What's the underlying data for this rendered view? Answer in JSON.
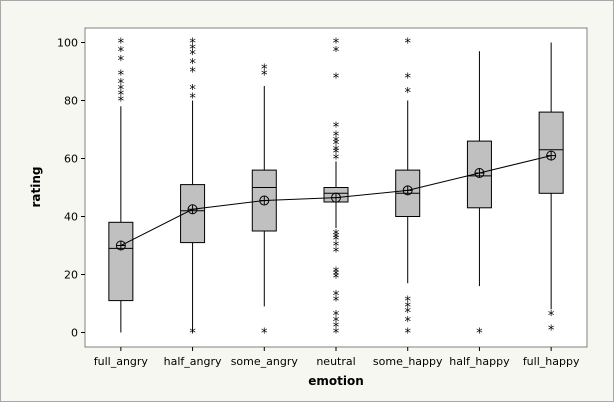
{
  "chart_data": {
    "type": "box",
    "title": "",
    "xlabel": "emotion",
    "ylabel": "rating",
    "ylim": [
      -5,
      105
    ],
    "yticks": [
      0,
      20,
      40,
      60,
      80,
      100
    ],
    "grid": false,
    "legend": "none",
    "colors": {
      "plot_bg": "#ffffff",
      "outer_bg": "#f7f7f1",
      "box_fill": "#c0c0c0",
      "line": "#000000"
    },
    "categories": [
      "full_angry",
      "half_angry",
      "some_angry",
      "neutral",
      "some_happy",
      "half_happy",
      "full_happy"
    ],
    "boxes": [
      {
        "category": "full_angry",
        "whisker_low": 0,
        "q1": 11,
        "median": 29,
        "q3": 38,
        "whisker_high": 78,
        "mean": 30,
        "outliers": [
          80,
          82,
          84,
          86,
          89,
          94,
          97,
          100
        ]
      },
      {
        "category": "half_angry",
        "whisker_low": 0,
        "q1": 31,
        "median": 42,
        "q3": 51,
        "whisker_high": 80,
        "mean": 42.5,
        "outliers": [
          0,
          81,
          84,
          90,
          93,
          96,
          98,
          100
        ]
      },
      {
        "category": "some_angry",
        "whisker_low": 9,
        "q1": 35,
        "median": 50,
        "q3": 56,
        "whisker_high": 85,
        "mean": 45.5,
        "outliers": [
          0,
          89,
          91
        ]
      },
      {
        "category": "neutral",
        "whisker_low": 36,
        "q1": 45,
        "median": 48,
        "q3": 50,
        "whisker_high": 59,
        "mean": 46.5,
        "outliers": [
          0,
          2,
          4,
          6,
          11,
          13,
          19,
          20,
          21,
          28,
          30,
          32,
          33,
          34,
          60,
          62,
          63,
          65,
          66,
          68,
          71,
          88,
          97,
          100
        ]
      },
      {
        "category": "some_happy",
        "whisker_low": 17,
        "q1": 40,
        "median": 48,
        "q3": 56,
        "whisker_high": 80,
        "mean": 49,
        "outliers": [
          0,
          4,
          7,
          9,
          11,
          83,
          88,
          100
        ]
      },
      {
        "category": "half_happy",
        "whisker_low": 16,
        "q1": 43,
        "median": 54,
        "q3": 66,
        "whisker_high": 97,
        "mean": 55,
        "outliers": [
          0
        ]
      },
      {
        "category": "full_happy",
        "whisker_low": 8,
        "q1": 48,
        "median": 63,
        "q3": 76,
        "whisker_high": 100,
        "mean": 61,
        "outliers": [
          1,
          6
        ]
      }
    ]
  }
}
